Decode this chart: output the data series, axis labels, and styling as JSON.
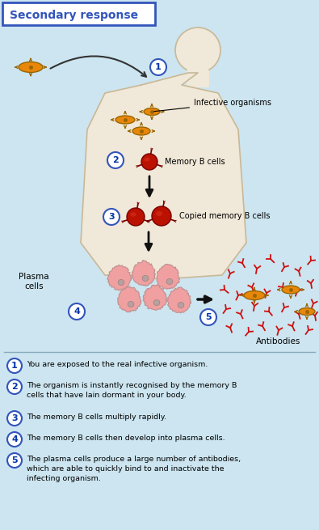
{
  "title": "Secondary response",
  "bg_color": "#cce5f0",
  "body_color": "#f0e8d8",
  "body_edge": "#c8b898",
  "border_color": "#3355bb",
  "infective_label": "Infective organisms",
  "memory_label": "Memory B cells",
  "copied_label": "Copied memory B cells",
  "plasma_label": "Plasma\ncells",
  "antibodies_label": "Antibodies",
  "desc1": "You are exposed to the real infective organism.",
  "desc2": "The organism is instantly recognised by the memory B\ncells that have lain dormant in your body.",
  "desc3": "The memory B cells multiply rapidly.",
  "desc4": "The memory B cells then develop into plasma cells.",
  "desc5": "The plasma cells produce a large number of antibodies,\nwhich are able to quickly bind to and inactivate the\ninfecting organism.",
  "orange": "#E8870A",
  "orange_edge": "#996600",
  "red_cell": "#BB1100",
  "red_cell_edge": "#770000",
  "pink_cell": "#F0A0A0",
  "pink_inner": "#C88080",
  "circle_bg": "#ffffff",
  "circle_edge": "#3355bb",
  "num_color": "#0033aa",
  "arrow_color": "#111111",
  "ab_color": "#CC1111"
}
